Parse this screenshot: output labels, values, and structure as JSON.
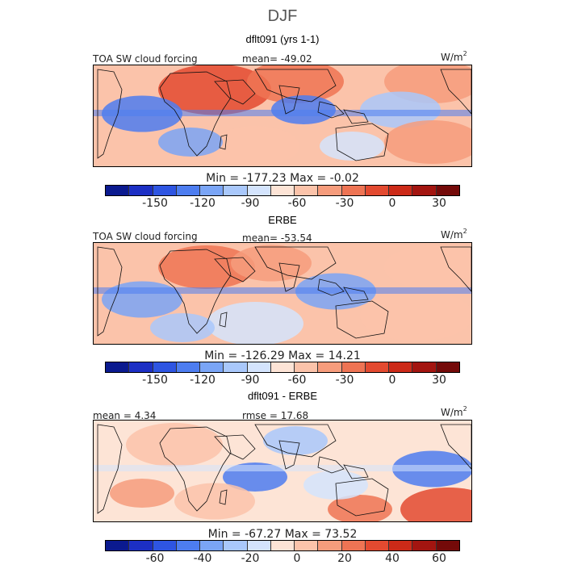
{
  "figure": {
    "season": "DJF"
  },
  "colorbar_colors": [
    "#0b1a8f",
    "#1c2fc4",
    "#2e55e2",
    "#4d7df0",
    "#7aa5f6",
    "#a9c8fb",
    "#d4e4fd",
    "#fde4d6",
    "#fbc3aa",
    "#f69c7c",
    "#ee7454",
    "#e34a30",
    "#cc2a18",
    "#a31510",
    "#740a09"
  ],
  "panels": [
    {
      "title": "dflt091 (yrs 1-1)",
      "left_label": "TOA SW cloud forcing",
      "center_label": "mean= -49.02",
      "unit_base": "W/m",
      "unit_exp": "2",
      "minmax": "Min = -177.23 Max = -0.02",
      "ticks": [
        "-150",
        "-120",
        "-90",
        "-60",
        "-30",
        "0",
        "30"
      ]
    },
    {
      "title": "ERBE",
      "left_label": "TOA SW cloud forcing",
      "center_label": "mean= -53.54",
      "unit_base": "W/m",
      "unit_exp": "2",
      "minmax": "Min = -126.29 Max = 14.21",
      "ticks": [
        "-150",
        "-120",
        "-90",
        "-60",
        "-30",
        "0",
        "30"
      ]
    },
    {
      "title": "dflt091 - ERBE",
      "left_label": "mean = 4.34",
      "center_label": "rmse = 17.68",
      "unit_base": "W/m",
      "unit_exp": "2",
      "minmax": "Min = -67.27 Max = 73.52",
      "ticks": [
        "-60",
        "-40",
        "-20",
        "0",
        "20",
        "40",
        "60"
      ]
    }
  ]
}
